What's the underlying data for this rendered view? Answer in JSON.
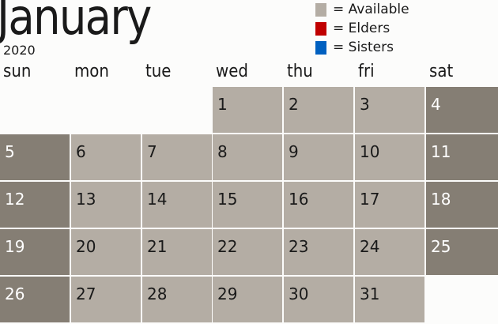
{
  "header": {
    "month": "January",
    "year": "2020"
  },
  "legend": [
    {
      "label": "= Available",
      "color": "#b4ada4"
    },
    {
      "label": "= Elders",
      "color": "#c00000"
    },
    {
      "label": "= Sisters",
      "color": "#0060c0"
    }
  ],
  "weekdays": [
    "sun",
    "mon",
    "tue",
    "wed",
    "thu",
    "fri",
    "sat"
  ],
  "colors": {
    "available": "#b4ada4",
    "weekend": "#857e74"
  },
  "days": [
    "1",
    "2",
    "3",
    "4",
    "5",
    "6",
    "7",
    "8",
    "9",
    "10",
    "11",
    "12",
    "13",
    "14",
    "15",
    "16",
    "17",
    "18",
    "19",
    "20",
    "21",
    "22",
    "23",
    "24",
    "25",
    "26",
    "27",
    "28",
    "29",
    "30",
    "31"
  ],
  "first_weekday": 3
}
